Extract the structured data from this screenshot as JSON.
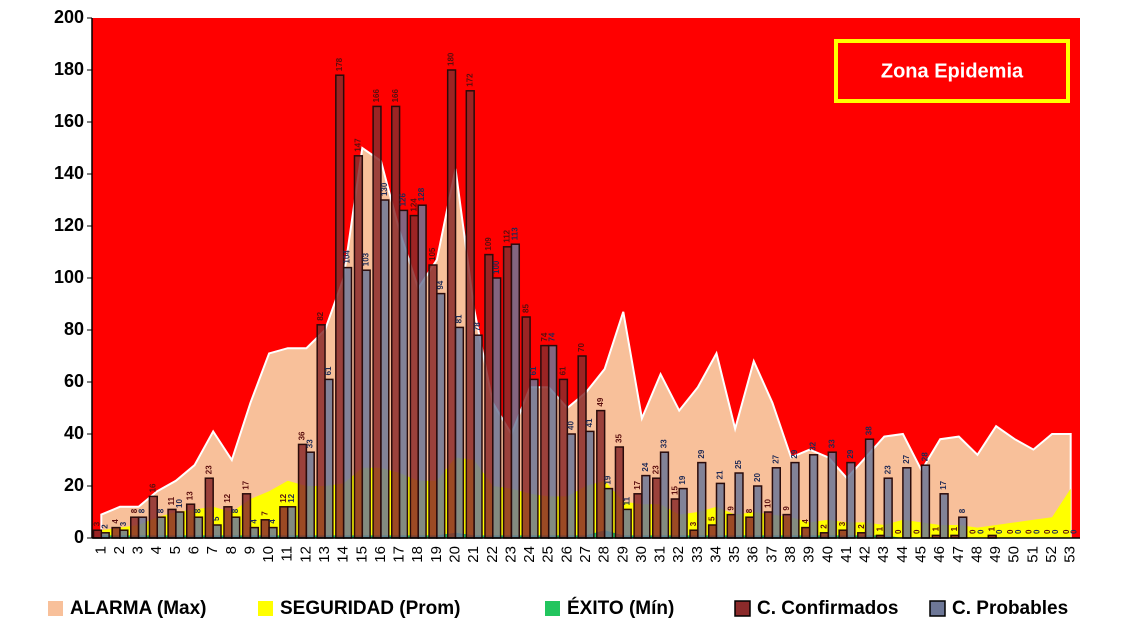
{
  "chart_data": {
    "type": "combo",
    "annotation": "Zona Epidemia",
    "background_color": "#ff0000",
    "categories": [
      "1",
      "2",
      "3",
      "4",
      "5",
      "6",
      "7",
      "8",
      "9",
      "10",
      "11",
      "12",
      "13",
      "14",
      "15",
      "16",
      "17",
      "18",
      "19",
      "20",
      "21",
      "22",
      "23",
      "24",
      "25",
      "26",
      "27",
      "28",
      "29",
      "30",
      "31",
      "32",
      "33",
      "34",
      "35",
      "36",
      "37",
      "38",
      "39",
      "40",
      "41",
      "42",
      "43",
      "44",
      "45",
      "46",
      "47",
      "48",
      "49",
      "50",
      "51",
      "52",
      "53"
    ],
    "ylim": [
      0,
      200
    ],
    "yticks": [
      0,
      20,
      40,
      60,
      80,
      100,
      120,
      140,
      160,
      180,
      200
    ],
    "series": [
      {
        "name": "ALARMA (Max)",
        "kind": "area",
        "color": "#f8c09a",
        "values": [
          9,
          12,
          12,
          18,
          22,
          28,
          41,
          30,
          52,
          71,
          73,
          73,
          80,
          100,
          150,
          145,
          118,
          96,
          107,
          142,
          88,
          52,
          40,
          58,
          58,
          50,
          56,
          65,
          87,
          46,
          63,
          49,
          58,
          71,
          42,
          68,
          52,
          31,
          34,
          31,
          23,
          31,
          39,
          40,
          26,
          38,
          39,
          32,
          43,
          38,
          34,
          40,
          40
        ]
      },
      {
        "name": "SEGURIDAD (Prom)",
        "kind": "area",
        "color": "#ffff00",
        "values": [
          3,
          4,
          5,
          8,
          10,
          11,
          12,
          10,
          15,
          18,
          22,
          20,
          20,
          21,
          27,
          27,
          25,
          22,
          22,
          31,
          30,
          20,
          19,
          17,
          16,
          16,
          20,
          22,
          14,
          13,
          13,
          9,
          10,
          12,
          9,
          10,
          9,
          8,
          6,
          7,
          6,
          6,
          5,
          7,
          6,
          5,
          5,
          4,
          5,
          6,
          7,
          8,
          19
        ]
      },
      {
        "name": "ÉXITO (Mín)",
        "kind": "area",
        "color": "#22c55e",
        "values": [
          1,
          1,
          1,
          1,
          1,
          1,
          1,
          1,
          1,
          1,
          1,
          1,
          1,
          1,
          1,
          1,
          1,
          1,
          1,
          2,
          1,
          1,
          1,
          1,
          1,
          1,
          1,
          3,
          1,
          1,
          1,
          1,
          1,
          1,
          1,
          1,
          1,
          1,
          1,
          1,
          1,
          1,
          1,
          0,
          0,
          0,
          0,
          0,
          0,
          0,
          0,
          0,
          0
        ]
      },
      {
        "name": "C. Confirmados",
        "kind": "bar",
        "color": "#8b2a2a",
        "values": [
          3,
          4,
          8,
          16,
          11,
          13,
          23,
          12,
          17,
          7,
          12,
          36,
          82,
          178,
          147,
          166,
          166,
          124,
          105,
          180,
          172,
          109,
          112,
          85,
          74,
          61,
          70,
          49,
          35,
          17,
          23,
          15,
          3,
          5,
          9,
          8,
          10,
          9,
          4,
          2,
          3,
          2,
          1,
          0,
          0,
          1,
          1,
          0,
          1,
          0,
          0,
          0,
          0
        ]
      },
      {
        "name": "C. Probables",
        "kind": "bar",
        "color": "#6d7797",
        "values": [
          2,
          3,
          8,
          8,
          10,
          8,
          5,
          8,
          4,
          4,
          12,
          33,
          61,
          104,
          103,
          130,
          126,
          128,
          94,
          81,
          78,
          100,
          113,
          61,
          74,
          40,
          41,
          19,
          11,
          24,
          33,
          19,
          29,
          21,
          25,
          20,
          27,
          29,
          32,
          33,
          29,
          38,
          23,
          27,
          28,
          17,
          8,
          0,
          0,
          0,
          0,
          0,
          0
        ]
      }
    ]
  }
}
